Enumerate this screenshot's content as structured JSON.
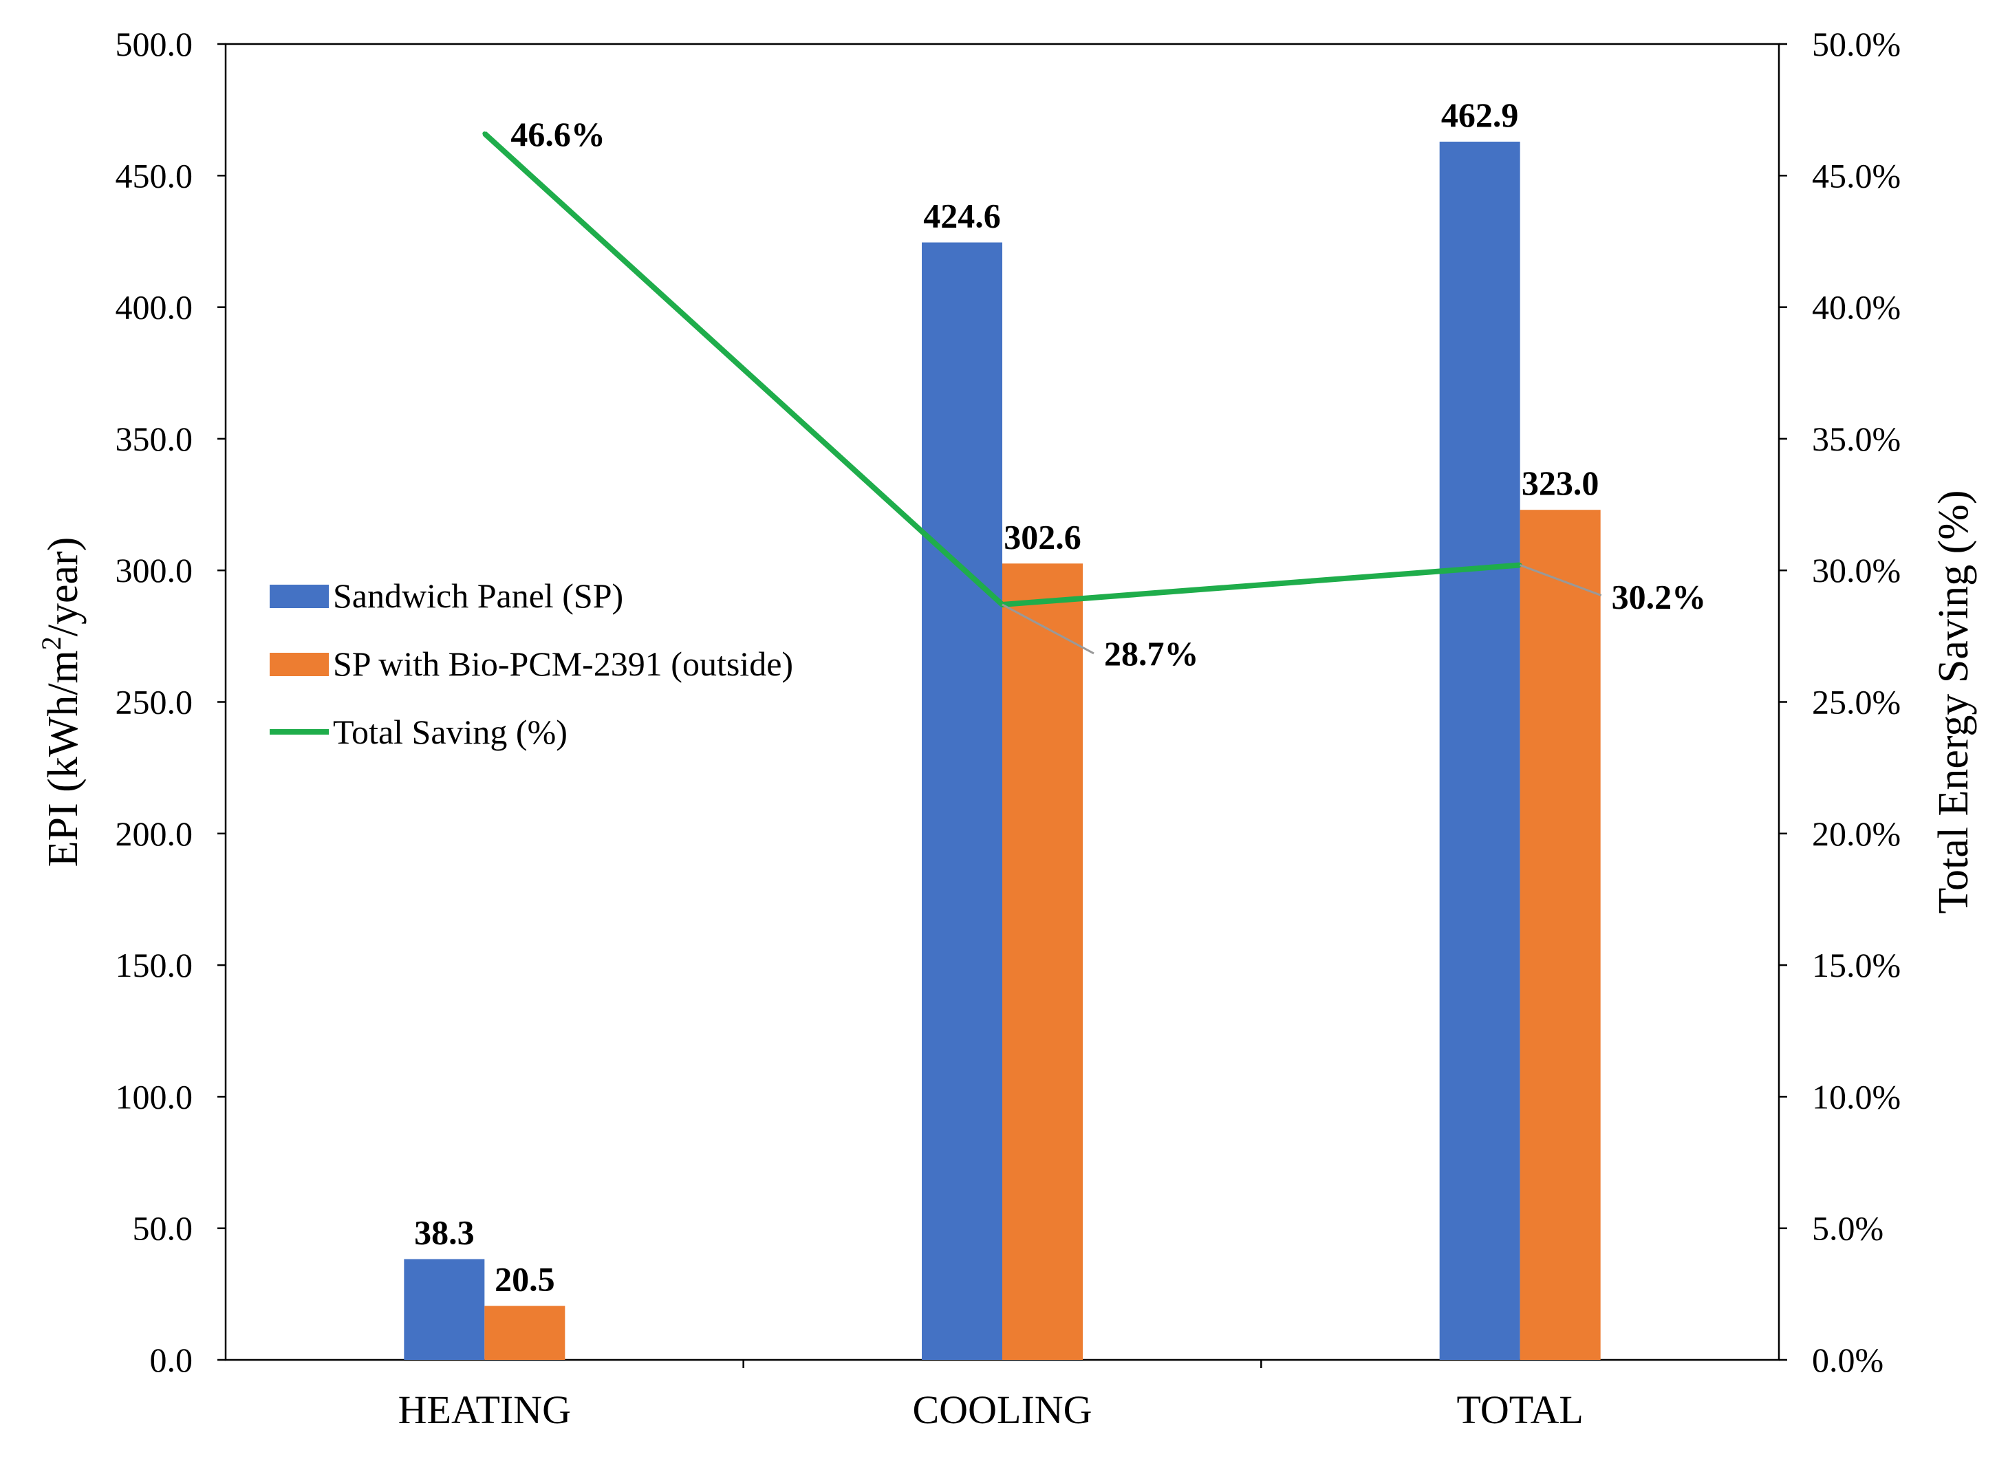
{
  "chart_data": {
    "type": "bar",
    "categories": [
      "HEATING",
      "COOLING",
      "TOTAL"
    ],
    "series": [
      {
        "name": "Sandwich Panel (SP)",
        "values": [
          38.3,
          424.6,
          462.9
        ],
        "color": "#4472C4",
        "labels": [
          "38.3",
          "424.6",
          "462.9"
        ]
      },
      {
        "name": "SP with Bio-PCM-2391 (outside)",
        "values": [
          20.5,
          302.6,
          323.0
        ],
        "color": "#ED7D31",
        "labels": [
          "20.5",
          "302.6",
          "323.0"
        ]
      }
    ],
    "line_series": {
      "name": "Total Saving (%)",
      "values": [
        46.6,
        28.7,
        30.2
      ],
      "labels": [
        "46.6%",
        "28.7%",
        "30.2%"
      ],
      "color": "#1FAD4B",
      "axis": "right"
    },
    "ylabel": "EPI (kWh/m²/year)",
    "ylabel_parts": {
      "main": "EPI (kWh/m",
      "sup": "2",
      "tail": "/year)"
    },
    "y2label": "Total Energy Saving (%)",
    "ylim": [
      0,
      500
    ],
    "y2lim": [
      0,
      50
    ],
    "yticks": [
      "0.0",
      "50.0",
      "100.0",
      "150.0",
      "200.0",
      "250.0",
      "300.0",
      "350.0",
      "400.0",
      "450.0",
      "500.0"
    ],
    "y2ticks": [
      "0.0%",
      "5.0%",
      "10.0%",
      "15.0%",
      "20.0%",
      "25.0%",
      "30.0%",
      "35.0%",
      "40.0%",
      "45.0%",
      "50.0%"
    ],
    "legend_position": "left"
  }
}
